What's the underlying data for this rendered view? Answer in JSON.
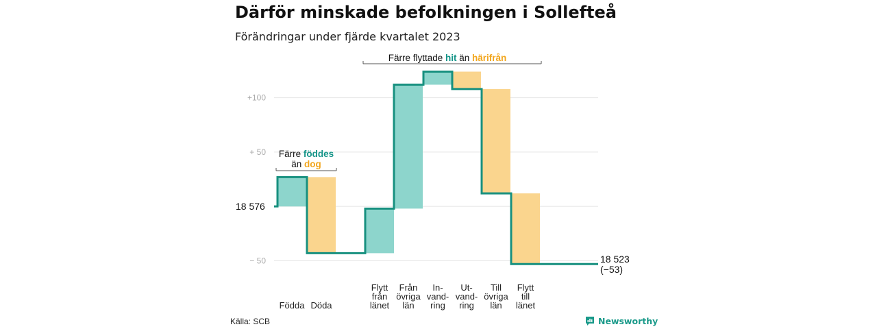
{
  "title": "Därför minskade befolkningen i Sollefteå",
  "subtitle": "Förändringar under fjärde kvartalet 2023",
  "source": "Källa: SCB",
  "brand": "Newsworthy",
  "colors": {
    "increase": "#8dd5cc",
    "decrease": "#fad58e",
    "line": "#17907f",
    "teal_text": "#149488",
    "orange_text": "#f2a61d"
  },
  "annotations": {
    "births": {
      "line1_pre": "Färre ",
      "line1_hl": "föddes",
      "line2_pre": "än ",
      "line2_hl": "dog"
    },
    "moves": {
      "pre": "Färre flyttade ",
      "hl1": "hit",
      "mid": " än ",
      "hl2": "härifrån"
    }
  },
  "chart_data": {
    "type": "waterfall",
    "start_value": 18576,
    "start_label": "18  576",
    "end_value": 18523,
    "end_label": "18 523",
    "end_change_label": "(−53)",
    "yticks": [
      {
        "value": 100,
        "label": "+100"
      },
      {
        "value": 50,
        "label": "+  50"
      },
      {
        "value": -50,
        "label": "−  50"
      }
    ],
    "ylim": [
      -56,
      130
    ],
    "grid": true,
    "steps": [
      {
        "category": [
          "Födda"
        ],
        "change": 27
      },
      {
        "category": [
          "Döda"
        ],
        "change": -70
      },
      {
        "category": [
          "Flytt",
          "från",
          "länet"
        ],
        "change": 41
      },
      {
        "category": [
          "Från",
          "övriga",
          "län"
        ],
        "change": 114
      },
      {
        "category": [
          "In-",
          "vand-",
          "ring"
        ],
        "change": 12
      },
      {
        "category": [
          "Ut-",
          "vand-",
          "ring"
        ],
        "change": -16
      },
      {
        "category": [
          "Till",
          "övriga",
          "län"
        ],
        "change": -96
      },
      {
        "category": [
          "Flytt",
          "till",
          "länet"
        ],
        "change": -65
      }
    ]
  }
}
